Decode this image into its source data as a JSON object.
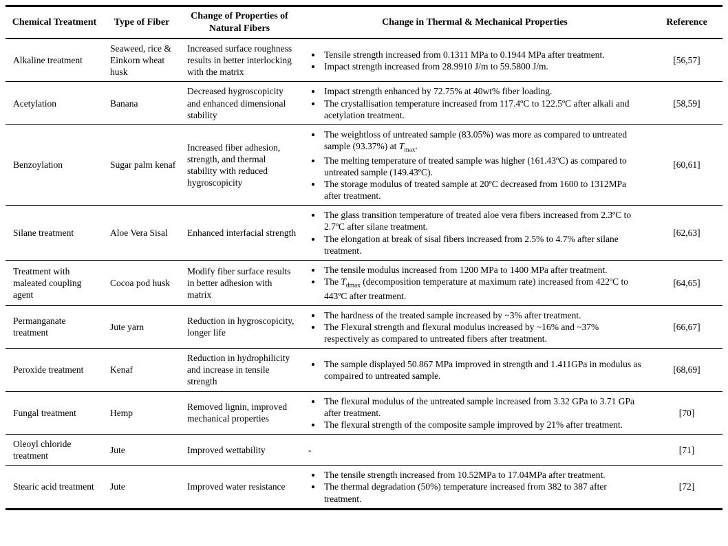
{
  "table": {
    "headers": [
      "Chemical Treatment",
      "Type of Fiber",
      "Change of Properties of Natural Fibers",
      "Change in Thermal & Mechanical Properties",
      "Reference"
    ],
    "rows": [
      {
        "treatment": "Alkaline treatment",
        "fiber": "Seaweed, rice & Einkorn wheat husk",
        "property_change": "Increased surface roughness results in better interlocking with the matrix",
        "bullets": [
          "Tensile strength increased from 0.1311 MPa to 0.1944 MPa after treatment.",
          "Impact strength increased from 28.9910 J/m to 59.5800 J/m."
        ],
        "reference": "[56,57]"
      },
      {
        "treatment": "Acetylation",
        "fiber": "Banana",
        "property_change": "Decreased hygroscopicity and enhanced dimensional stability",
        "bullets": [
          "Impact strength enhanced by 72.75% at 40wt% fiber loading.",
          "The crystallisation temperature increased from 117.4ºC to 122.5ºC after alkali and acetylation treatment."
        ],
        "reference": "[58,59]"
      },
      {
        "treatment": "Benzoylation",
        "fiber": "Sugar palm kenaf",
        "property_change": "Increased fiber adhesion, strength, and thermal stability with reduced hygroscopicity",
        "bullets": [
          "The weightloss of untreated sample (83.05%) was more as compared to untreated sample (93.37%) at <i>T</i><sub>max</sub>.",
          "The melting temperature of treated sample was higher (161.43ºC) as compared to untreated sample (149.43ºC).",
          "The storage modulus of treated sample at 20ºC decreased from 1600 to 1312MPa after treatment."
        ],
        "reference": "[60,61]"
      },
      {
        "treatment": "Silane treatment",
        "fiber": "Aloe Vera Sisal",
        "property_change": "Enhanced interfacial strength",
        "bullets": [
          "The glass transition temperature of treated aloe vera fibers increased from 2.3ºC to 2.7ºC after silane treatment.",
          "The elongation at break of sisal fibers increased from 2.5% to 4.7% after silane treatment."
        ],
        "reference": "[62,63]"
      },
      {
        "treatment": "Treatment with maleated coupling agent",
        "fiber": "Cocoa pod husk",
        "property_change": "Modify fiber surface results in better adhesion with matrix",
        "bullets": [
          "The tensile modulus increased from 1200 MPa to 1400 MPa after treatment.",
          "The <i>T</i><sub>dmax</sub> (decomposition temperature at maximum rate) increased from 422ºC to 443ºC after treatment."
        ],
        "reference": "[64,65]"
      },
      {
        "treatment": "Permanganate treatment",
        "fiber": "Jute yarn",
        "property_change": "Reduction in hygroscopicity, longer life",
        "bullets": [
          "The hardness of the treated sample increased by ~3% after treatment.",
          "The Flexural strength and flexural modulus increased by ~16% and ~37% respectively as compared to untreated fibers after treatment."
        ],
        "reference": "[66,67]"
      },
      {
        "treatment": "Peroxide treatment",
        "fiber": "Kenaf",
        "property_change": "Reduction in hydrophilicity and increase in tensile strength",
        "bullets": [
          "The sample displayed 50.867 MPa improved in strength and 1.411GPa in modulus as compaired to untreated sample."
        ],
        "reference": "[68,69]"
      },
      {
        "treatment": "Fungal treatment",
        "fiber": "Hemp",
        "property_change": "Removed lignin, improved mechanical properties",
        "bullets": [
          "The flexural modulus of the untreated sample increased from 3.32 GPa to 3.71 GPa after treatment.",
          "The flexural strength of the composite sample improved by 21% after treatment."
        ],
        "reference": "[70]"
      },
      {
        "treatment": "Oleoyl chloride treatment",
        "fiber": "Jute",
        "property_change": "Improved wettability",
        "bullets": [],
        "placeholder": "-",
        "reference": "[71]"
      },
      {
        "treatment": "Stearic acid treatment",
        "fiber": "Jute",
        "property_change": "Improved water resistance",
        "bullets": [
          "The tensile strength increased from 10.52MPa to 17.04MPa after treatment.",
          "The thermal degradation (50%) temperature increased from 382 to 387 after treatment."
        ],
        "reference": "[72]"
      }
    ]
  }
}
